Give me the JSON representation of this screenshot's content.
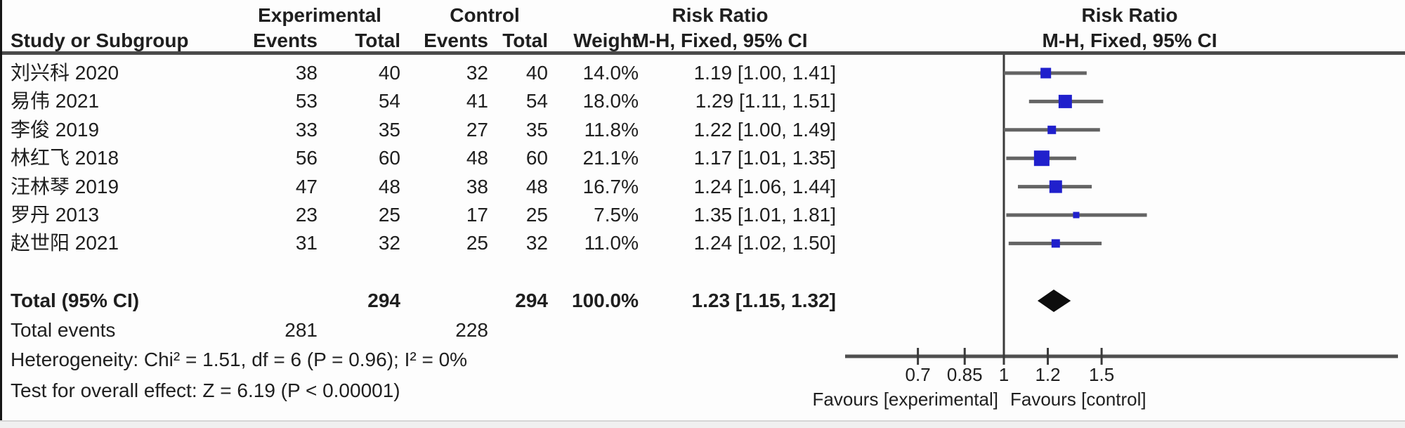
{
  "table_header": {
    "experimental": "Experimental",
    "control": "Control",
    "risk_ratio_left": "Risk Ratio",
    "risk_ratio_right": "Risk Ratio",
    "study": "Study or Subgroup",
    "events": "Events",
    "total": "Total",
    "events_ctl": "Events",
    "total_ctl": "Total",
    "weight": "Weight",
    "mh_fixed_left": "M-H, Fixed, 95% CI",
    "mh_fixed_right": "M-H, Fixed, 95% CI"
  },
  "colors": {
    "marker_blue": "#2020cc",
    "ci_line_gray": "#646464",
    "diamond_black": "#0d0d0d",
    "axis_gray": "#4f4f4f",
    "text": "#1f1f1f"
  },
  "chart_data": {
    "type": "scatter",
    "subtype": "forest-plot-meta-analysis",
    "effect_measure": "Risk Ratio, M-H, Fixed, 95% CI",
    "x_scale": "log",
    "x_ticks": [
      "0.7",
      "0.85",
      "1",
      "1.2",
      "1.5"
    ],
    "null_line": 1,
    "favours_left": "Favours [experimental]",
    "favours_right": "Favours [control]",
    "studies": [
      {
        "name": "刘兴科 2020",
        "exp_events": "38",
        "exp_total": "40",
        "ctl_events": "32",
        "ctl_total": "40",
        "weight": "14.0%",
        "weight_pct": 14.0,
        "rr": 1.19,
        "ci_low": 1.0,
        "ci_high": 1.41,
        "rr_label": "1.19 [1.00, 1.41]"
      },
      {
        "name": "易伟 2021",
        "exp_events": "53",
        "exp_total": "54",
        "ctl_events": "41",
        "ctl_total": "54",
        "weight": "18.0%",
        "weight_pct": 18.0,
        "rr": 1.29,
        "ci_low": 1.11,
        "ci_high": 1.51,
        "rr_label": "1.29 [1.11, 1.51]"
      },
      {
        "name": "李俊 2019",
        "exp_events": "33",
        "exp_total": "35",
        "ctl_events": "27",
        "ctl_total": "35",
        "weight": "11.8%",
        "weight_pct": 11.8,
        "rr": 1.22,
        "ci_low": 1.0,
        "ci_high": 1.49,
        "rr_label": "1.22 [1.00, 1.49]"
      },
      {
        "name": "林红飞 2018",
        "exp_events": "56",
        "exp_total": "60",
        "ctl_events": "48",
        "ctl_total": "60",
        "weight": "21.1%",
        "weight_pct": 21.1,
        "rr": 1.17,
        "ci_low": 1.01,
        "ci_high": 1.35,
        "rr_label": "1.17 [1.01, 1.35]"
      },
      {
        "name": "汪林琴 2019",
        "exp_events": "47",
        "exp_total": "48",
        "ctl_events": "38",
        "ctl_total": "48",
        "weight": "16.7%",
        "weight_pct": 16.7,
        "rr": 1.24,
        "ci_low": 1.06,
        "ci_high": 1.44,
        "rr_label": "1.24 [1.06, 1.44]"
      },
      {
        "name": "罗丹 2013",
        "exp_events": "23",
        "exp_total": "25",
        "ctl_events": "17",
        "ctl_total": "25",
        "weight": "7.5%",
        "weight_pct": 7.5,
        "rr": 1.35,
        "ci_low": 1.01,
        "ci_high": 1.81,
        "rr_label": "1.35 [1.01, 1.81]"
      },
      {
        "name": "赵世阳 2021",
        "exp_events": "31",
        "exp_total": "32",
        "ctl_events": "25",
        "ctl_total": "32",
        "weight": "11.0%",
        "weight_pct": 11.0,
        "rr": 1.24,
        "ci_low": 1.02,
        "ci_high": 1.5,
        "rr_label": "1.24 [1.02, 1.50]"
      }
    ],
    "total": {
      "label": "Total (95% CI)",
      "exp_total": "294",
      "ctl_total": "294",
      "weight": "100.0%",
      "rr": 1.23,
      "ci_low": 1.15,
      "ci_high": 1.32,
      "rr_label": "1.23 [1.15, 1.32]"
    },
    "total_events": {
      "label": "Total events",
      "experimental": "281",
      "control": "228"
    },
    "heterogeneity": "Heterogeneity: Chi² = 1.51, df = 6 (P = 0.96); I² = 0%",
    "overall_effect": "Test for overall effect: Z = 6.19 (P < 0.00001)"
  }
}
